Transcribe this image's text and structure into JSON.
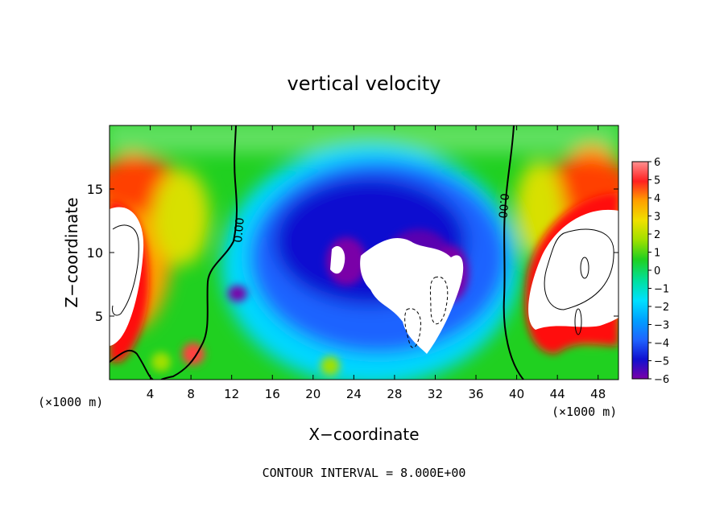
{
  "chart_data": {
    "type": "heatmap",
    "title": "vertical velocity",
    "xlabel": "X−coordinate",
    "ylabel": "Z−coordinate",
    "x_unit_left": "(×1000 m)",
    "x_unit_right": "(×1000 m)",
    "footer": "CONTOUR INTERVAL = 8.000E+00",
    "xlim": [
      0,
      50
    ],
    "ylim": [
      0,
      20
    ],
    "x_ticks": [
      "4",
      "8",
      "12",
      "16",
      "20",
      "24",
      "28",
      "32",
      "36",
      "40",
      "44",
      "48"
    ],
    "y_ticks": [
      "5",
      "10",
      "15"
    ],
    "colorbar_labels": [
      "6",
      "5",
      "4",
      "3",
      "2",
      "1",
      "0",
      "−1",
      "−2",
      "−3",
      "−4",
      "−5",
      "−6"
    ],
    "colorbar_range": [
      -6,
      6
    ],
    "contour_labels": [
      "0.00",
      "0.00"
    ],
    "colormap": [
      "#7a00a8",
      "#1010d0",
      "#1e64ff",
      "#00c8ff",
      "#00e0a0",
      "#20d020",
      "#a0e000",
      "#f0e000",
      "#ffa000",
      "#ff4000",
      "#ff1010",
      "#ff9090"
    ],
    "grid": false,
    "legend": "right"
  }
}
